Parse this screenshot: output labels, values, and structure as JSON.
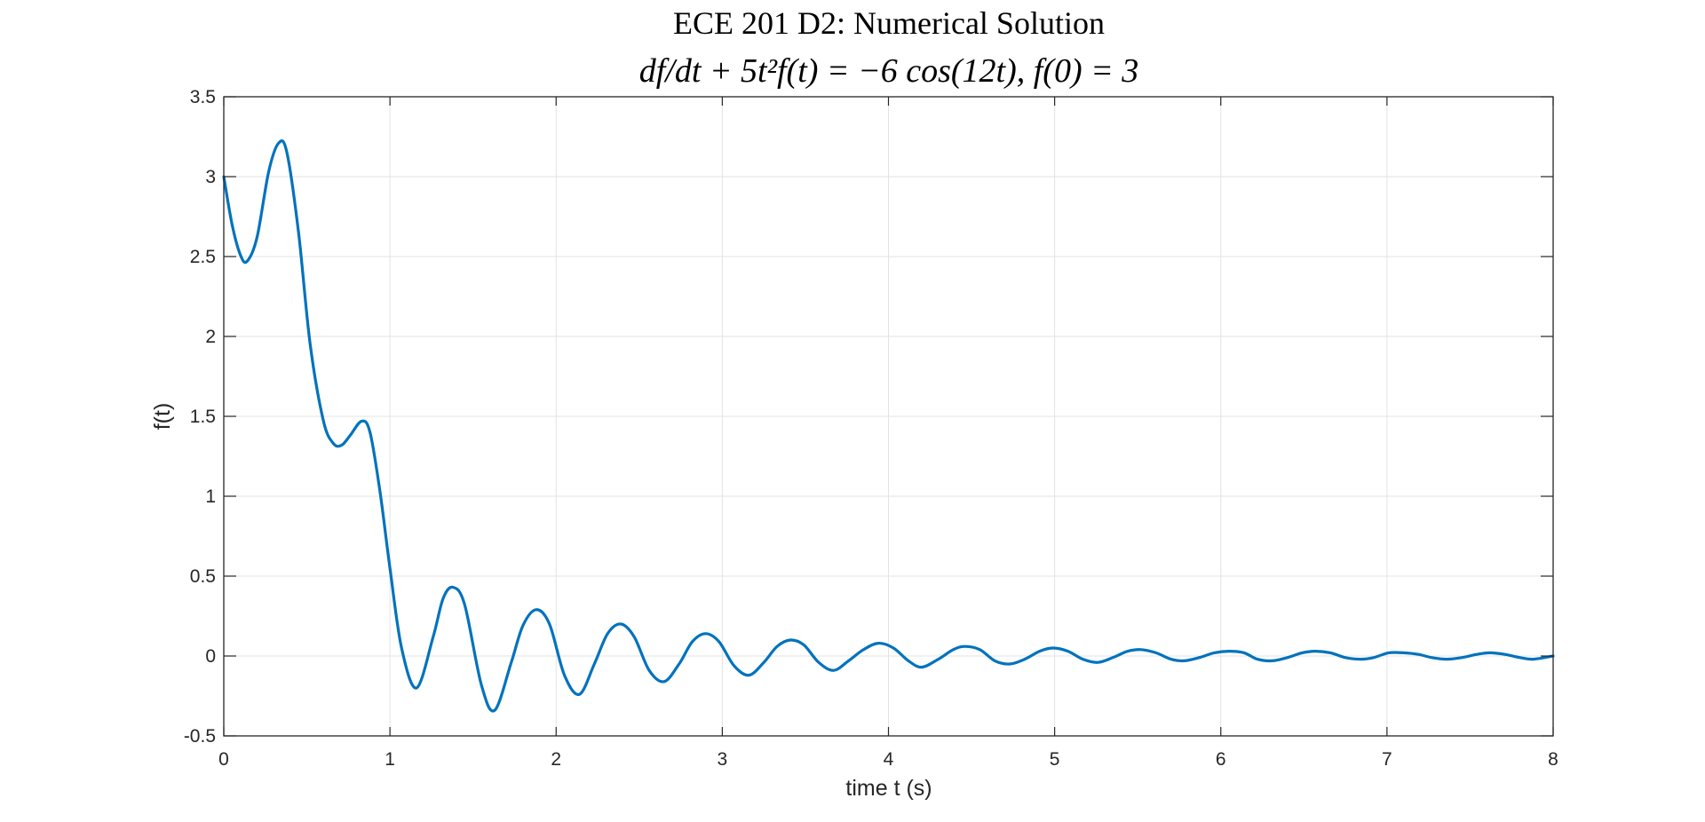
{
  "chart_data": {
    "type": "line",
    "title": "ECE 201 D2: Numerical Solution",
    "subtitle": "df/dt + 5t²f(t) = −6 cos(12t), f(0) = 3",
    "xlabel": "time t (s)",
    "ylabel": "f(t)",
    "xlim": [
      0,
      8
    ],
    "ylim": [
      -0.5,
      3.5
    ],
    "xticks": [
      0,
      1,
      2,
      3,
      4,
      5,
      6,
      7,
      8
    ],
    "yticks": [
      -0.5,
      0,
      0.5,
      1,
      1.5,
      2,
      2.5,
      3,
      3.5
    ],
    "xtick_labels": [
      "0",
      "1",
      "2",
      "3",
      "4",
      "5",
      "6",
      "7",
      "8"
    ],
    "ytick_labels": [
      "-0.5",
      "0",
      "0.5",
      "1",
      "1.5",
      "2",
      "2.5",
      "3",
      "3.5"
    ],
    "grid": true,
    "line_color": "#0072BD",
    "series": [
      {
        "x": [
          0,
          0.05,
          0.1,
          0.14,
          0.2,
          0.27,
          0.33,
          0.38,
          0.45,
          0.52,
          0.6,
          0.66,
          0.71,
          0.76,
          0.83,
          0.88,
          0.94,
          1.0,
          1.07,
          1.16,
          1.26,
          1.32,
          1.38,
          1.45,
          1.55,
          1.63,
          1.73,
          1.8,
          1.88,
          1.96,
          2.05,
          2.14,
          2.23,
          2.31,
          2.39,
          2.47,
          2.56,
          2.65,
          2.74,
          2.82,
          2.9,
          2.98,
          3.07,
          3.16,
          3.25,
          3.33,
          3.41,
          3.49,
          3.58,
          3.67,
          3.76,
          3.85,
          3.94,
          4.03,
          4.12,
          4.2,
          4.3,
          4.39,
          4.46,
          4.55,
          4.64,
          4.73,
          4.82,
          4.91,
          4.99,
          5.08,
          5.17,
          5.26,
          5.35,
          5.44,
          5.52,
          5.61,
          5.7,
          5.78,
          5.87,
          5.96,
          6.05,
          6.14,
          6.22,
          6.31,
          6.4,
          6.49,
          6.57,
          6.66,
          6.75,
          6.84,
          6.92,
          7.01,
          7.1,
          7.19,
          7.27,
          7.36,
          7.45,
          7.54,
          7.62,
          7.71,
          7.8,
          7.88,
          8.0
        ],
        "y": [
          3.0,
          2.7,
          2.51,
          2.47,
          2.62,
          3.03,
          3.21,
          3.15,
          2.65,
          1.95,
          1.47,
          1.33,
          1.32,
          1.38,
          1.47,
          1.4,
          1.03,
          0.55,
          0.05,
          -0.2,
          0.12,
          0.36,
          0.43,
          0.32,
          -0.18,
          -0.34,
          -0.04,
          0.19,
          0.29,
          0.2,
          -0.12,
          -0.24,
          -0.05,
          0.14,
          0.2,
          0.12,
          -0.09,
          -0.16,
          -0.05,
          0.09,
          0.14,
          0.09,
          -0.06,
          -0.12,
          -0.04,
          0.06,
          0.1,
          0.07,
          -0.04,
          -0.09,
          -0.03,
          0.04,
          0.08,
          0.05,
          -0.03,
          -0.07,
          -0.02,
          0.04,
          0.06,
          0.04,
          -0.03,
          -0.05,
          -0.02,
          0.03,
          0.05,
          0.03,
          -0.02,
          -0.04,
          -0.01,
          0.03,
          0.04,
          0.02,
          -0.02,
          -0.03,
          -0.01,
          0.02,
          0.03,
          0.02,
          -0.02,
          -0.03,
          -0.01,
          0.02,
          0.03,
          0.02,
          -0.01,
          -0.02,
          -0.01,
          0.02,
          0.02,
          0.01,
          -0.01,
          -0.02,
          -0.01,
          0.01,
          0.02,
          0.01,
          -0.01,
          -0.02,
          0.0
        ]
      }
    ]
  }
}
